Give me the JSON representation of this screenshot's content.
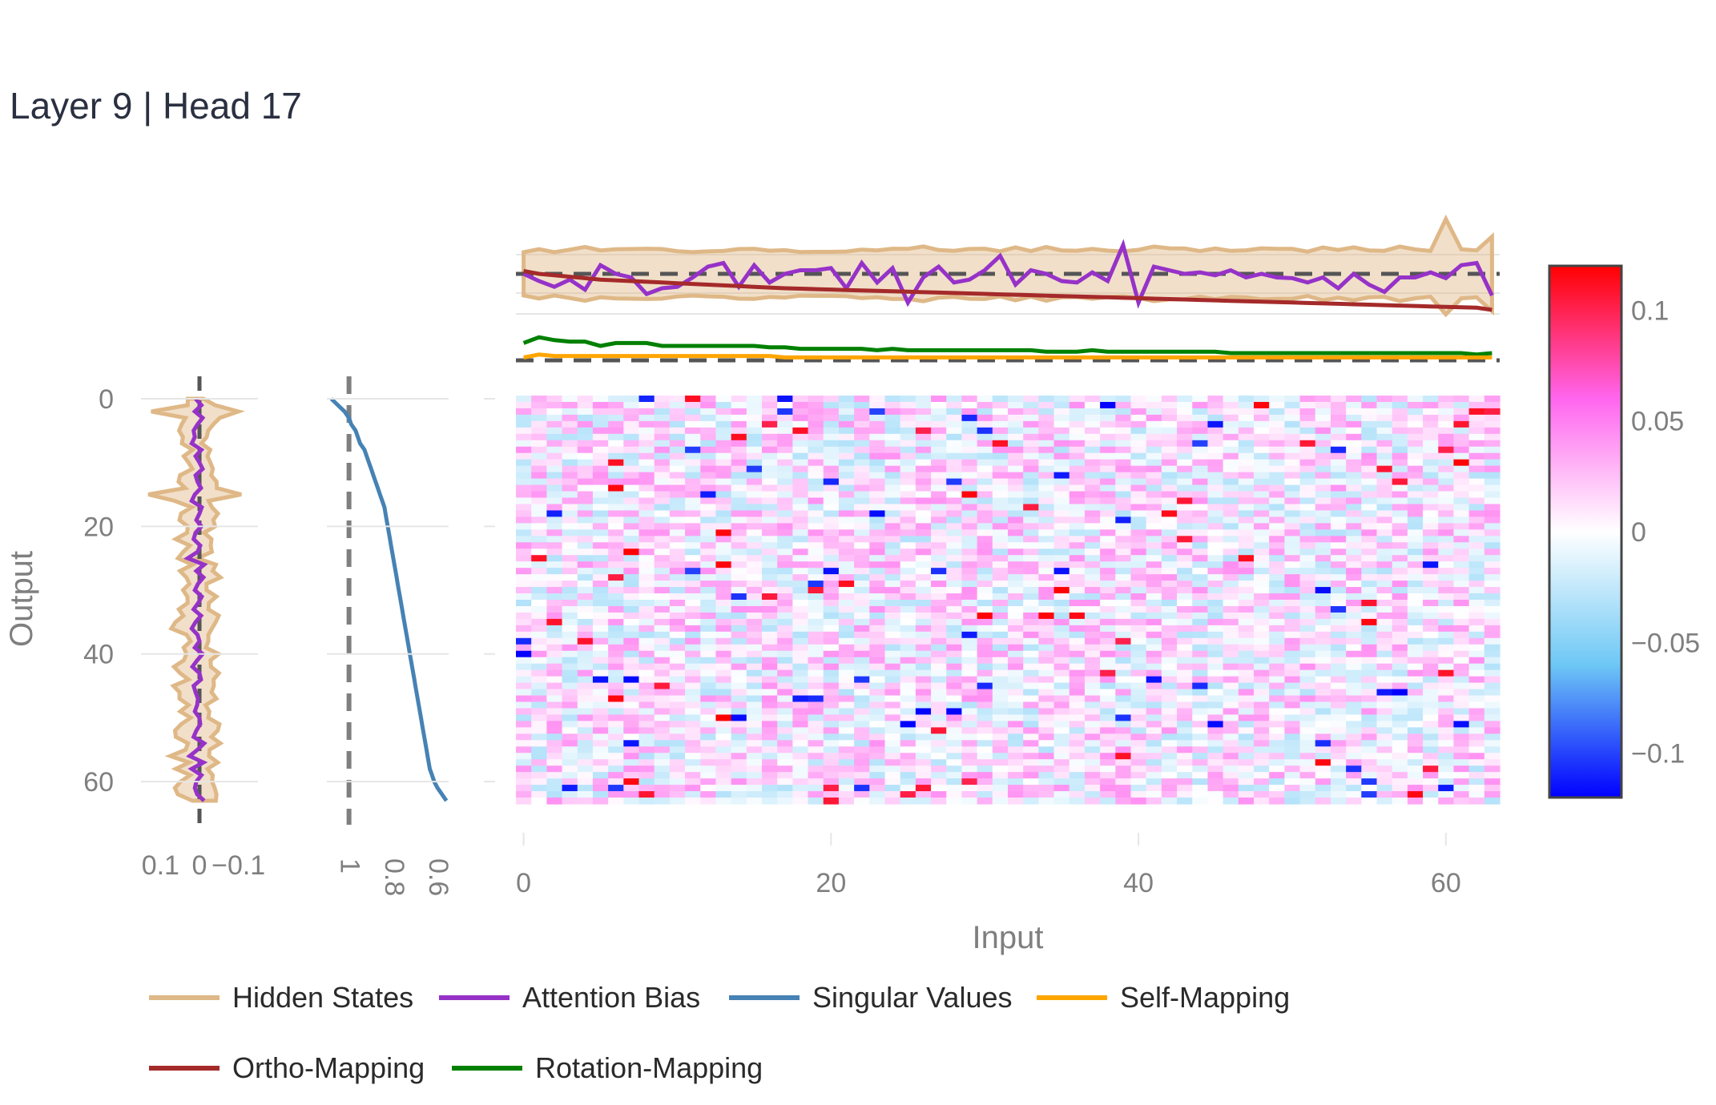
{
  "title": "Layer 9 | Head 17",
  "chart_data": {
    "type": "heatmap",
    "title": "Layer 9 | Head 17",
    "xlabel": "Input",
    "ylabel": "Output",
    "x_ticks": [
      "0",
      "20",
      "40",
      "60"
    ],
    "y_ticks": [
      "0",
      "20",
      "40",
      "60"
    ],
    "rows": 64,
    "cols": 64,
    "colorscale": {
      "range": [
        -0.12,
        0.12
      ],
      "ticks": [
        "0.1",
        "0.05",
        "0",
        "−0.05",
        "−0.1"
      ],
      "colors": [
        "#0000ff",
        "#6ec8f5",
        "#ffffff",
        "#ff66ee",
        "#ff0000"
      ]
    },
    "left_profile": {
      "x_ticks": [
        "0.1",
        "0",
        "−0.1"
      ],
      "reversed": true,
      "xlim": [
        0.15,
        -0.15
      ],
      "hidden_states_band_halfwidth": 0.02,
      "attention_bias": [
        0.01,
        -0.005,
        0.012,
        -0.008,
        0.005,
        0.015,
        0.012,
        0.02,
        -0.005,
        0.01,
        0.0,
        -0.008,
        0.01,
        0.005,
        -0.004,
        0.012,
        0.02,
        -0.006,
        0.0,
        0.008,
        -0.005,
        0.01,
        0.015,
        -0.002,
        0.005,
        0.03,
        -0.012,
        0.008,
        -0.01,
        0.004,
        0.012,
        -0.006,
        0.003,
        0.015,
        -0.004,
        0.01,
        0.02,
        0.005,
        0.0,
        0.012,
        -0.008,
        0.006,
        0.018,
        0.0,
        -0.004,
        0.015,
        0.01,
        0.004,
        0.006,
        0.012,
        0.0,
        -0.002,
        0.008,
        0.015,
        -0.012,
        0.005,
        0.025,
        -0.01,
        0.02,
        -0.005,
        0.008,
        0.012,
        0.006,
        -0.012
      ]
    },
    "singular_values": {
      "x_ticks": [
        "1",
        "0.8",
        "0.6"
      ],
      "xlim": [
        1.1,
        0.55
      ],
      "values": [
        1.08,
        1.05,
        1.02,
        1.0,
        0.99,
        0.97,
        0.96,
        0.95,
        0.93,
        0.92,
        0.91,
        0.9,
        0.89,
        0.88,
        0.87,
        0.86,
        0.85,
        0.84,
        0.835,
        0.83,
        0.825,
        0.82,
        0.815,
        0.81,
        0.805,
        0.8,
        0.795,
        0.79,
        0.785,
        0.78,
        0.775,
        0.77,
        0.765,
        0.76,
        0.755,
        0.75,
        0.745,
        0.74,
        0.735,
        0.73,
        0.725,
        0.72,
        0.715,
        0.71,
        0.705,
        0.7,
        0.695,
        0.69,
        0.685,
        0.68,
        0.675,
        0.67,
        0.665,
        0.66,
        0.655,
        0.65,
        0.645,
        0.64,
        0.635,
        0.625,
        0.615,
        0.6,
        0.58,
        0.56
      ],
      "reference": 1.0
    },
    "top_profiles": {
      "attention_bias": [
        0.0,
        -0.01,
        -0.018,
        -0.008,
        -0.022,
        0.012,
        0.0,
        -0.005,
        -0.028,
        -0.02,
        -0.018,
        -0.005,
        0.01,
        0.015,
        -0.018,
        0.012,
        -0.012,
        0.0,
        0.005,
        0.005,
        0.008,
        -0.02,
        0.015,
        -0.012,
        0.008,
        -0.04,
        -0.005,
        0.01,
        -0.012,
        -0.008,
        0.005,
        0.025,
        -0.015,
        0.005,
        0.0,
        -0.01,
        -0.012,
        0.002,
        -0.01,
        0.04,
        -0.04,
        0.01,
        0.005,
        0.0,
        0.002,
        -0.002,
        0.005,
        -0.005,
        0.0,
        -0.005,
        -0.006,
        -0.012,
        -0.005,
        -0.02,
        0.0,
        -0.015,
        -0.025,
        -0.005,
        -0.005,
        0.002,
        -0.006,
        0.012,
        0.015,
        -0.03
      ],
      "hidden_states_band_halfwidth": 0.03,
      "ortho_mapping": [
        0.62,
        0.6,
        0.59,
        0.58,
        0.57,
        0.56,
        0.555,
        0.55,
        0.545,
        0.54,
        0.535,
        0.53,
        0.525,
        0.52,
        0.515,
        0.51,
        0.505,
        0.5,
        0.497,
        0.494,
        0.491,
        0.488,
        0.485,
        0.482,
        0.479,
        0.476,
        0.473,
        0.47,
        0.467,
        0.464,
        0.461,
        0.458,
        0.455,
        0.452,
        0.449,
        0.446,
        0.443,
        0.44,
        0.437,
        0.434,
        0.431,
        0.428,
        0.425,
        0.422,
        0.419,
        0.416,
        0.413,
        0.41,
        0.407,
        0.404,
        0.401,
        0.398,
        0.395,
        0.392,
        0.389,
        0.386,
        0.383,
        0.38,
        0.377,
        0.374,
        0.371,
        0.368,
        0.365,
        0.35
      ],
      "rotation_mapping": [
        0.12,
        0.16,
        0.14,
        0.13,
        0.13,
        0.1,
        0.12,
        0.12,
        0.12,
        0.1,
        0.1,
        0.1,
        0.1,
        0.1,
        0.1,
        0.1,
        0.09,
        0.09,
        0.08,
        0.08,
        0.08,
        0.08,
        0.08,
        0.07,
        0.08,
        0.07,
        0.07,
        0.07,
        0.07,
        0.07,
        0.07,
        0.07,
        0.07,
        0.07,
        0.06,
        0.06,
        0.06,
        0.07,
        0.06,
        0.06,
        0.06,
        0.06,
        0.06,
        0.06,
        0.06,
        0.06,
        0.05,
        0.05,
        0.05,
        0.05,
        0.05,
        0.05,
        0.05,
        0.05,
        0.05,
        0.05,
        0.05,
        0.05,
        0.05,
        0.05,
        0.05,
        0.05,
        0.04,
        0.05
      ],
      "self_mapping": [
        0.02,
        0.04,
        0.03,
        0.03,
        0.03,
        0.03,
        0.03,
        0.03,
        0.03,
        0.03,
        0.03,
        0.03,
        0.03,
        0.03,
        0.03,
        0.03,
        0.03,
        0.02,
        0.02,
        0.02,
        0.02,
        0.02,
        0.02,
        0.02,
        0.02,
        0.02,
        0.02,
        0.02,
        0.02,
        0.02,
        0.02,
        0.02,
        0.02,
        0.02,
        0.02,
        0.02,
        0.02,
        0.02,
        0.02,
        0.02,
        0.02,
        0.02,
        0.02,
        0.02,
        0.02,
        0.02,
        0.02,
        0.02,
        0.02,
        0.02,
        0.02,
        0.02,
        0.02,
        0.02,
        0.02,
        0.02,
        0.02,
        0.02,
        0.02,
        0.02,
        0.02,
        0.02,
        0.02,
        0.02
      ]
    },
    "legend": [
      {
        "label": "Hidden States",
        "color": "#dfb887"
      },
      {
        "label": "Attention Bias",
        "color": "#9632c8"
      },
      {
        "label": "Singular Values",
        "color": "#4682b4"
      },
      {
        "label": "Self-Mapping",
        "color": "#ffa500"
      },
      {
        "label": "Ortho-Mapping",
        "color": "#a52a2a"
      },
      {
        "label": "Rotation-Mapping",
        "color": "#008000"
      }
    ]
  }
}
